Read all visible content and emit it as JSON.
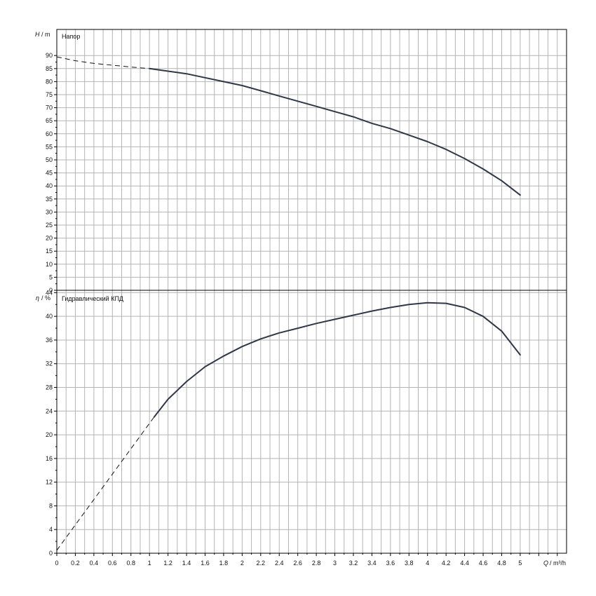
{
  "chart_data": [
    {
      "type": "line",
      "title": "Напор",
      "ylabel_symbol": "H",
      "ylabel_unit": "/ m",
      "xlim": [
        0,
        5.5
      ],
      "ylim": [
        0,
        100
      ],
      "yticks": [
        0,
        5,
        10,
        15,
        20,
        25,
        30,
        35,
        40,
        45,
        50,
        55,
        60,
        65,
        70,
        75,
        80,
        85,
        90
      ],
      "grid": true,
      "series": [
        {
          "style": "dashed",
          "x": [
            0,
            0.2,
            0.4,
            0.6,
            0.8,
            1.0
          ],
          "y": [
            89.5,
            88.0,
            87.0,
            86.3,
            85.6,
            85.0
          ]
        },
        {
          "style": "solid",
          "x": [
            1.0,
            1.2,
            1.4,
            1.6,
            1.8,
            2.0,
            2.2,
            2.4,
            2.6,
            2.8,
            3.0,
            3.2,
            3.4,
            3.6,
            3.8,
            4.0,
            4.2,
            4.4,
            4.6,
            4.8,
            5.0
          ],
          "y": [
            85.0,
            84.0,
            83.0,
            81.5,
            80.0,
            78.5,
            76.5,
            74.5,
            72.5,
            70.5,
            68.5,
            66.5,
            64.0,
            62.0,
            59.5,
            57.0,
            54.0,
            50.5,
            46.5,
            42.0,
            36.5
          ]
        }
      ]
    },
    {
      "type": "line",
      "title": "Гидравлический КПД",
      "ylabel_symbol": "η",
      "ylabel_unit": "/ %",
      "xlabel_symbol": "Q",
      "xlabel_unit": "/ m³/h",
      "xlim": [
        0,
        5.5
      ],
      "ylim": [
        0,
        44.4
      ],
      "yticks": [
        0,
        4,
        8,
        12,
        16,
        20,
        24,
        28,
        32,
        36,
        40,
        44
      ],
      "xticks": [
        0,
        0.2,
        0.4,
        0.6,
        0.8,
        1,
        1.2,
        1.4,
        1.6,
        1.8,
        2,
        2.2,
        2.4,
        2.6,
        2.8,
        3,
        3.2,
        3.4,
        3.6,
        3.8,
        4,
        4.2,
        4.4,
        4.6,
        4.8,
        5
      ],
      "grid": true,
      "series": [
        {
          "style": "dashed",
          "x": [
            0,
            1.05
          ],
          "y": [
            0.5,
            23.0
          ]
        },
        {
          "style": "solid",
          "x": [
            1.05,
            1.2,
            1.4,
            1.6,
            1.8,
            2.0,
            2.2,
            2.4,
            2.6,
            2.8,
            3.0,
            3.2,
            3.4,
            3.6,
            3.8,
            4.0,
            4.2,
            4.4,
            4.6,
            4.8,
            5.0
          ],
          "y": [
            23.0,
            26.0,
            29.0,
            31.5,
            33.3,
            34.9,
            36.2,
            37.2,
            38.0,
            38.8,
            39.5,
            40.2,
            40.9,
            41.5,
            42.0,
            42.3,
            42.2,
            41.5,
            40.0,
            37.5,
            33.5
          ]
        }
      ]
    }
  ]
}
